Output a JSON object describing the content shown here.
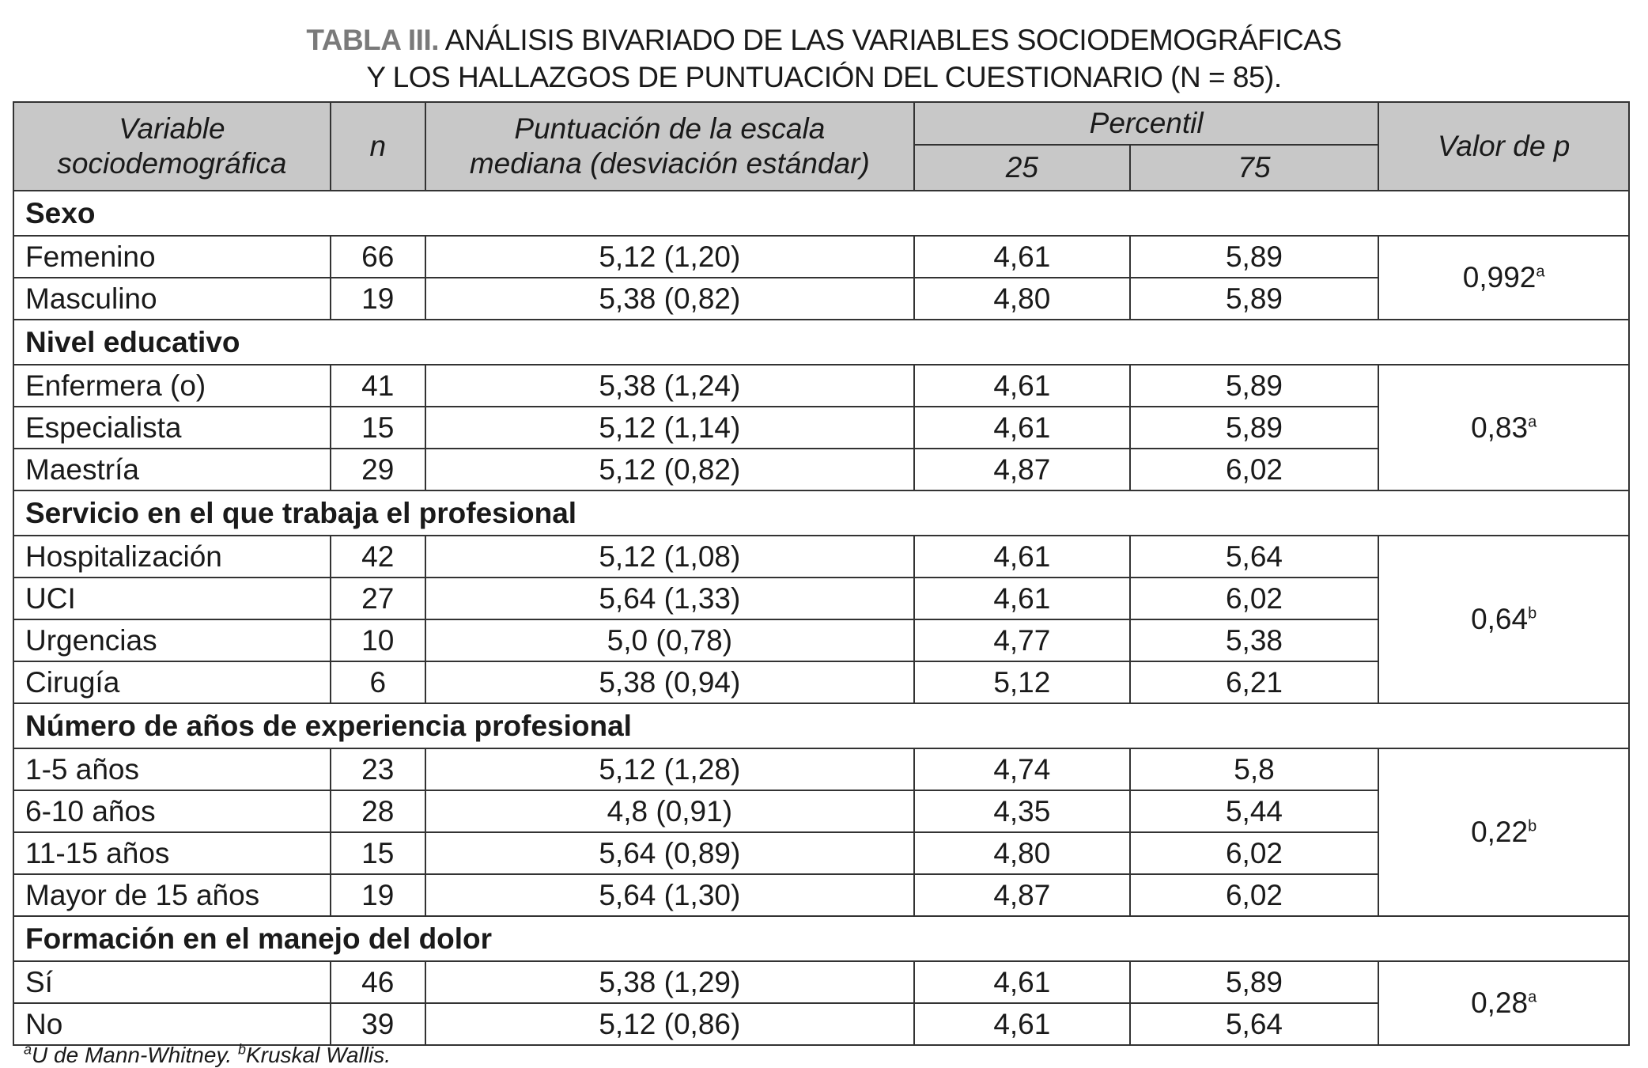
{
  "title": {
    "label": "TABLA III.",
    "line1": "ANÁLISIS BIVARIADO DE LAS VARIABLES SOCIODEMOGRÁFICAS",
    "line2": "Y LOS HALLAZGOS DE PUNTUACIÓN DEL CUESTIONARIO (N = 85)."
  },
  "header": {
    "variable_1": "Variable",
    "variable_2": "sociodemográfica",
    "n": "n",
    "score_1": "Puntuación de la escala",
    "score_2": "mediana (desviación estándar)",
    "percentil": "Percentil",
    "p25": "25",
    "p75": "75",
    "pvalue": "Valor de p"
  },
  "groups": [
    {
      "name": "Sexo",
      "p": "0,992",
      "sup": "a",
      "rows": [
        [
          "Femenino",
          "66",
          "5,12 (1,20)",
          "4,61",
          "5,89"
        ],
        [
          "Masculino",
          "19",
          "5,38 (0,82)",
          "4,80",
          "5,89"
        ]
      ]
    },
    {
      "name": "Nivel educativo",
      "p": "0,83",
      "sup": "a",
      "rows": [
        [
          "Enfermera (o)",
          "41",
          "5,38 (1,24)",
          "4,61",
          "5,89"
        ],
        [
          "Especialista",
          "15",
          "5,12 (1,14)",
          "4,61",
          "5,89"
        ],
        [
          "Maestría",
          "29",
          "5,12 (0,82)",
          "4,87",
          "6,02"
        ]
      ]
    },
    {
      "name": "Servicio en el que trabaja el profesional",
      "p": "0,64",
      "sup": "b",
      "rows": [
        [
          "Hospitalización",
          "42",
          "5,12 (1,08)",
          "4,61",
          "5,64"
        ],
        [
          "UCI",
          "27",
          "5,64 (1,33)",
          "4,61",
          "6,02"
        ],
        [
          "Urgencias",
          "10",
          "5,0 (0,78)",
          "4,77",
          "5,38"
        ],
        [
          "Cirugía",
          "6",
          "5,38 (0,94)",
          "5,12",
          "6,21"
        ]
      ]
    },
    {
      "name": "Número de años de experiencia profesional",
      "p": "0,22",
      "sup": "b",
      "rows": [
        [
          "1-5 años",
          "23",
          "5,12 (1,28)",
          "4,74",
          "5,8"
        ],
        [
          "6-10 años",
          "28",
          "4,8 (0,91)",
          "4,35",
          "5,44"
        ],
        [
          "11-15 años",
          "15",
          "5,64 (0,89)",
          "4,80",
          "6,02"
        ],
        [
          "Mayor de 15 años",
          "19",
          "5,64 (1,30)",
          "4,87",
          "6,02"
        ]
      ]
    },
    {
      "name": "Formación en el manejo del dolor",
      "p": "0,28",
      "sup": "a",
      "rows": [
        [
          "Sí",
          "46",
          "5,38 (1,29)",
          "4,61",
          "5,89"
        ],
        [
          "No",
          "39",
          "5,12 (0,86)",
          "4,61",
          "5,64"
        ]
      ]
    }
  ],
  "footnote": {
    "a_sup": "a",
    "a_text": "U de Mann-Whitney. ",
    "b_sup": "b",
    "b_text": "Kruskal Wallis."
  },
  "colors": {
    "header_bg": "#c8c8c8",
    "title_label": "#7a7a7a"
  }
}
